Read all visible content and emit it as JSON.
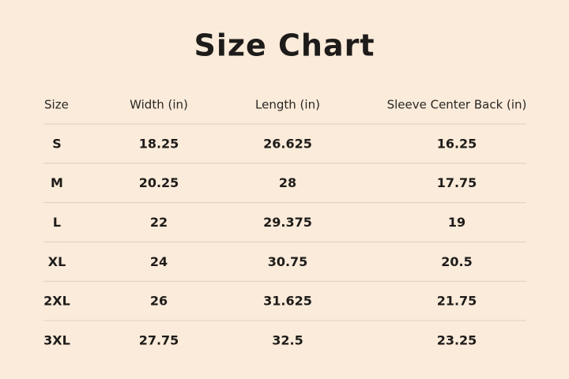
{
  "header": {
    "title": "Size Chart"
  },
  "table": {
    "columns": [
      "Size",
      "Width (in)",
      "Length (in)",
      "Sleeve Center Back (in)"
    ],
    "rows": [
      [
        "S",
        "18.25",
        "26.625",
        "16.25"
      ],
      [
        "M",
        "20.25",
        "28",
        "17.75"
      ],
      [
        "L",
        "22",
        "29.375",
        "19"
      ],
      [
        "XL",
        "24",
        "30.75",
        "20.5"
      ],
      [
        "2XL",
        "26",
        "31.625",
        "21.75"
      ],
      [
        "3XL",
        "27.75",
        "32.5",
        "23.25"
      ]
    ]
  }
}
